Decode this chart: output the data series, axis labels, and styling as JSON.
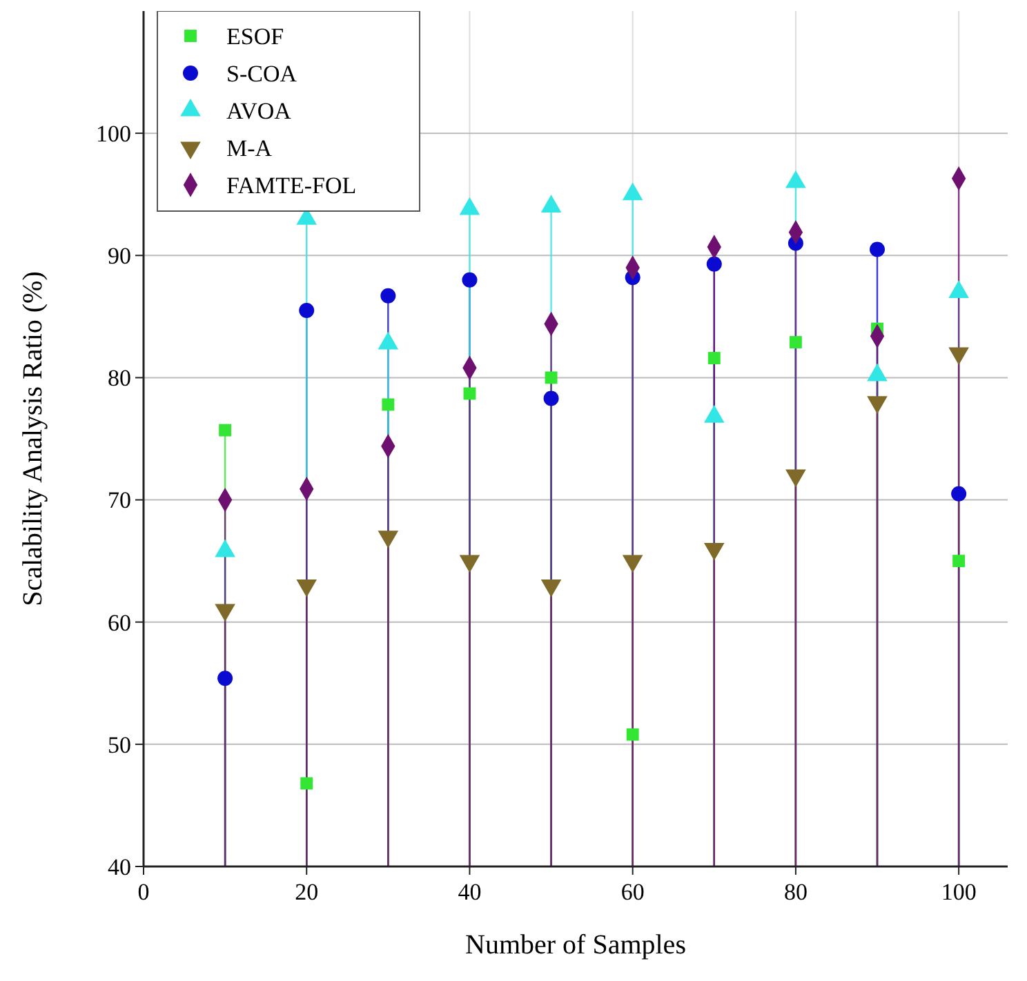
{
  "chart_data": {
    "type": "lollipop",
    "xlabel": "Number of Samples",
    "ylabel": "Scalability Analysis Ratio (%)",
    "x": [
      10,
      20,
      30,
      40,
      50,
      60,
      70,
      80,
      90,
      100
    ],
    "xlim": [
      0,
      106
    ],
    "xticks": [
      0,
      20,
      40,
      60,
      80,
      100
    ],
    "ylim": [
      40,
      110
    ],
    "yticks": [
      40,
      50,
      60,
      70,
      80,
      90,
      100
    ],
    "grid": true,
    "legend": "top left",
    "series": [
      {
        "name": "ESOF",
        "color": "#33e633",
        "marker": "square",
        "values": [
          75.7,
          46.8,
          77.8,
          78.7,
          80,
          50.8,
          81.6,
          82.9,
          84,
          65
        ]
      },
      {
        "name": "S-COA",
        "color": "#0a0ad0",
        "marker": "circle",
        "values": [
          55.4,
          85.5,
          86.7,
          88,
          78.3,
          88.2,
          89.3,
          91,
          90.5,
          70.5
        ]
      },
      {
        "name": "AVOA",
        "color": "#33e6e6",
        "marker": "triangle",
        "values": [
          65.8,
          93,
          82.8,
          93.8,
          94,
          95,
          76.8,
          96,
          80.2,
          87
        ]
      },
      {
        "name": "M-A",
        "color": "#7f6a2a",
        "marker": "triangle-down",
        "values": [
          61,
          63,
          67,
          65,
          63,
          65,
          66,
          72,
          78,
          82
        ]
      },
      {
        "name": "FAMTE-FOL",
        "color": "#6e1070",
        "marker": "diamond",
        "values": [
          70,
          70.9,
          74.4,
          80.8,
          84.4,
          89,
          90.7,
          91.9,
          83.4,
          96.3
        ]
      }
    ]
  }
}
